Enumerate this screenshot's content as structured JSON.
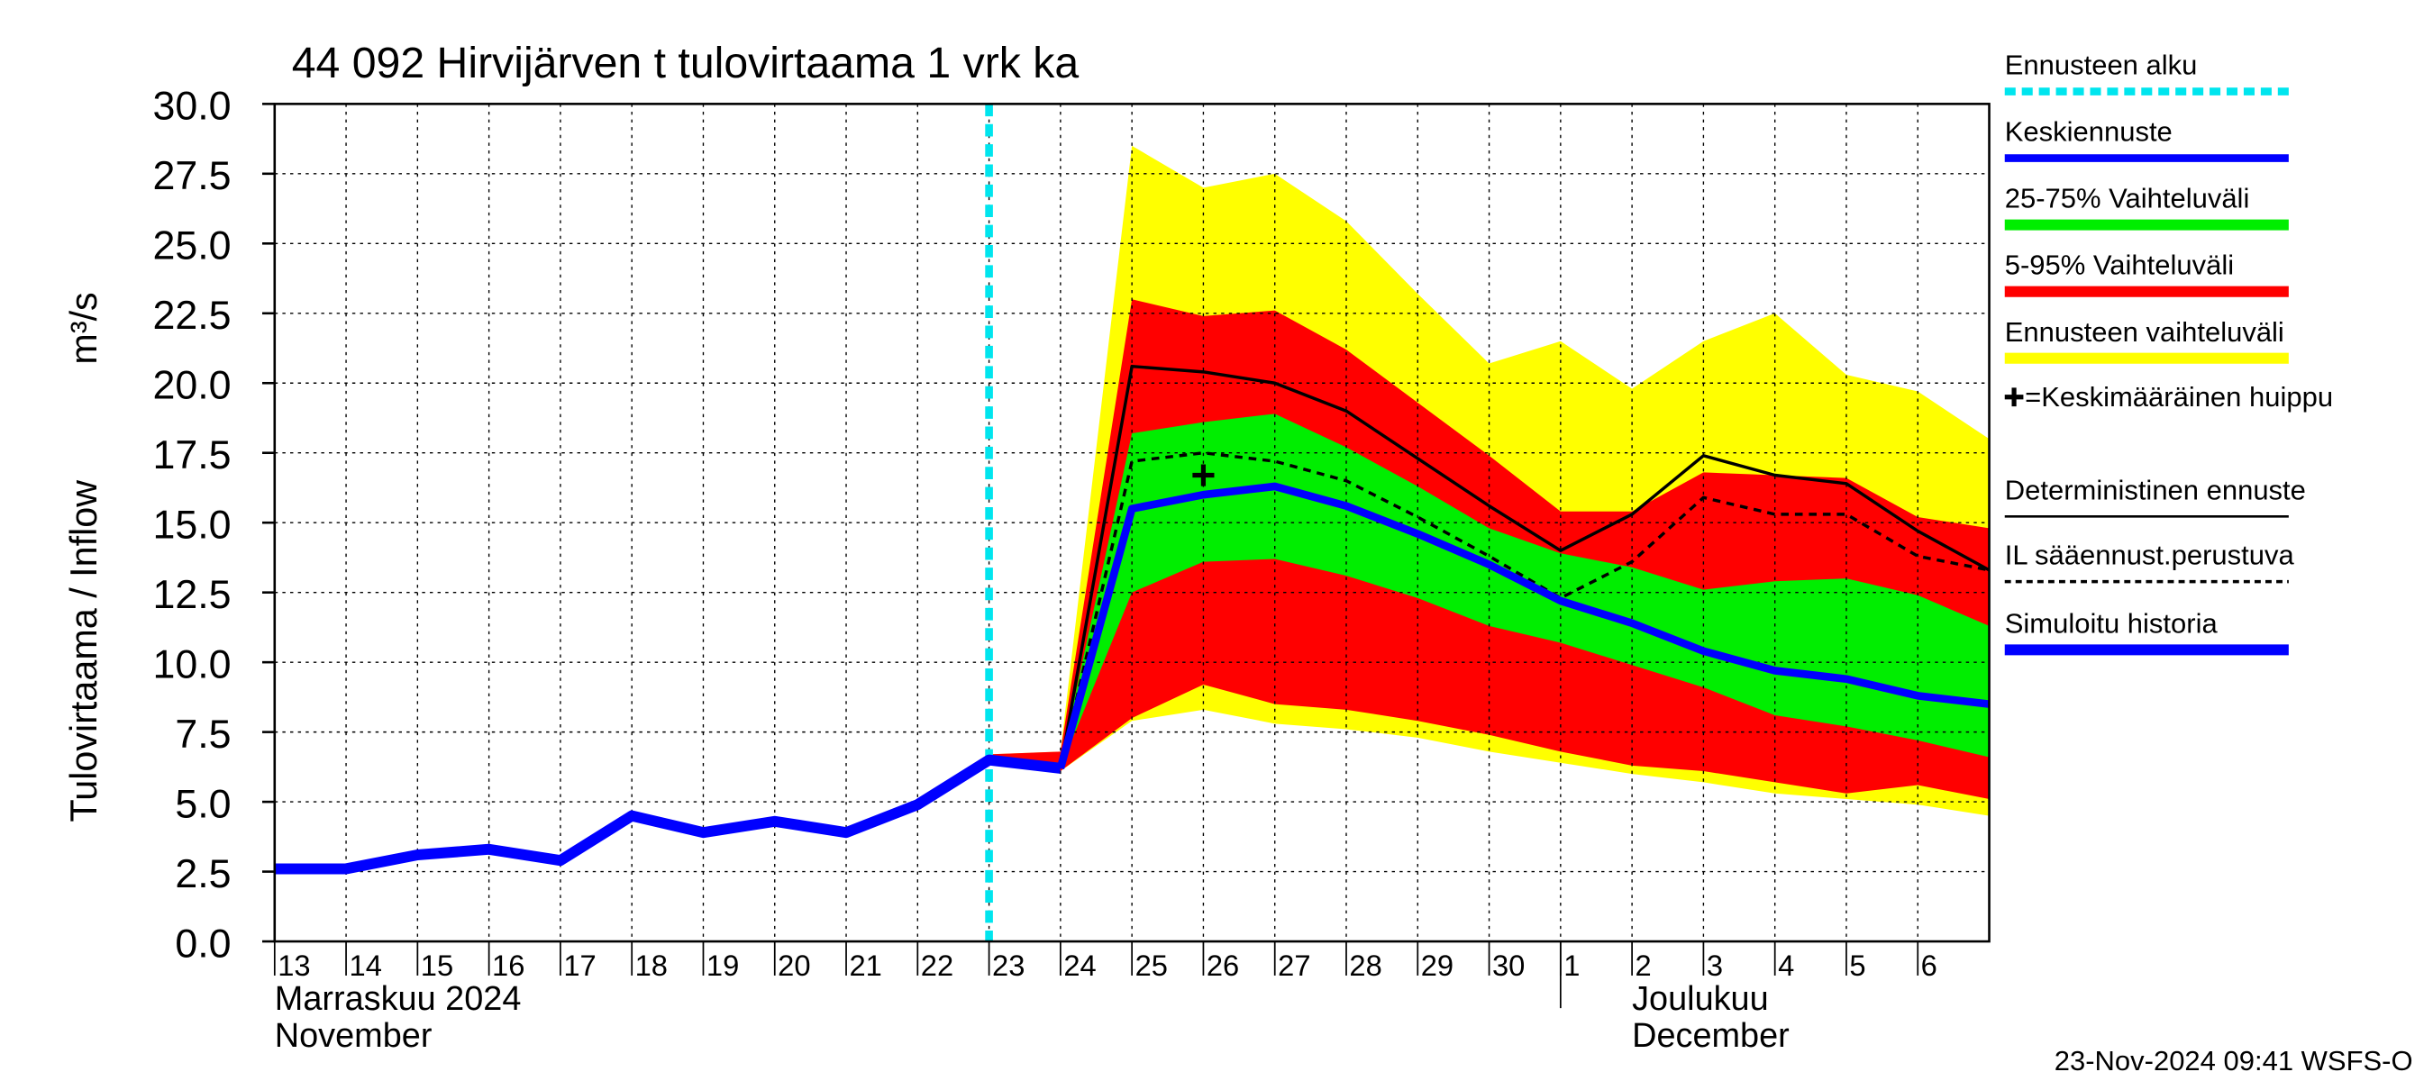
{
  "chart_data": {
    "type": "line",
    "title": "44 092 Hirvijärven t tulovirtaama 1 vrk ka",
    "ylabel": "Tulovirtaama / Inflow",
    "yunit": "m³/s",
    "month_labels": [
      {
        "x": "2024-11-13",
        "lines": [
          "Marraskuu 2024",
          "November"
        ]
      },
      {
        "x": "2024-12-02",
        "lines": [
          "Joulukuu",
          "December"
        ]
      }
    ],
    "timestamp": "23-Nov-2024 09:41 WSFS-O",
    "x": [
      "2024-11-13",
      "2024-11-14",
      "2024-11-15",
      "2024-11-16",
      "2024-11-17",
      "2024-11-18",
      "2024-11-19",
      "2024-11-20",
      "2024-11-21",
      "2024-11-22",
      "2024-11-23",
      "2024-11-24",
      "2024-11-25",
      "2024-11-26",
      "2024-11-27",
      "2024-11-28",
      "2024-11-29",
      "2024-11-30",
      "2024-12-01",
      "2024-12-02",
      "2024-12-03",
      "2024-12-04",
      "2024-12-05",
      "2024-12-06",
      "2024-12-07"
    ],
    "xlim": [
      "2024-11-13",
      "2024-12-07"
    ],
    "xticks": [
      {
        "value": "2024-11-13",
        "label": "13"
      },
      {
        "value": "2024-11-14",
        "label": "14"
      },
      {
        "value": "2024-11-15",
        "label": "15"
      },
      {
        "value": "2024-11-16",
        "label": "16"
      },
      {
        "value": "2024-11-17",
        "label": "17"
      },
      {
        "value": "2024-11-18",
        "label": "18"
      },
      {
        "value": "2024-11-19",
        "label": "19"
      },
      {
        "value": "2024-11-20",
        "label": "20"
      },
      {
        "value": "2024-11-21",
        "label": "21"
      },
      {
        "value": "2024-11-22",
        "label": "22"
      },
      {
        "value": "2024-11-23",
        "label": "23"
      },
      {
        "value": "2024-11-24",
        "label": "24"
      },
      {
        "value": "2024-11-25",
        "label": "25"
      },
      {
        "value": "2024-11-26",
        "label": "26"
      },
      {
        "value": "2024-11-27",
        "label": "27"
      },
      {
        "value": "2024-11-28",
        "label": "28"
      },
      {
        "value": "2024-11-29",
        "label": "29"
      },
      {
        "value": "2024-11-30",
        "label": "30"
      },
      {
        "value": "2024-12-01",
        "label": "1"
      },
      {
        "value": "2024-12-02",
        "label": "2"
      },
      {
        "value": "2024-12-03",
        "label": "3"
      },
      {
        "value": "2024-12-04",
        "label": "4"
      },
      {
        "value": "2024-12-05",
        "label": "5"
      },
      {
        "value": "2024-12-06",
        "label": "6"
      }
    ],
    "month_divider": "2024-12-01",
    "ylim": [
      0,
      30
    ],
    "yticks": [
      {
        "value": 0,
        "label": "0.0"
      },
      {
        "value": 2.5,
        "label": "2.5"
      },
      {
        "value": 5,
        "label": "5.0"
      },
      {
        "value": 7.5,
        "label": "7.5"
      },
      {
        "value": 10,
        "label": "10.0"
      },
      {
        "value": 12.5,
        "label": "12.5"
      },
      {
        "value": 15,
        "label": "15.0"
      },
      {
        "value": 17.5,
        "label": "17.5"
      },
      {
        "value": 20,
        "label": "20.0"
      },
      {
        "value": 22.5,
        "label": "22.5"
      },
      {
        "value": 25,
        "label": "25.0"
      },
      {
        "value": 27.5,
        "label": "27.5"
      },
      {
        "value": 30,
        "label": "30.0"
      }
    ],
    "grid": true,
    "forecast_start": {
      "name": "Ennusteen alku",
      "x": "2024-11-23",
      "color": "#00e5ee"
    },
    "bands": [
      {
        "name": "Ennusteen vaihteluväli",
        "color": "#ffff00",
        "high": [
          null,
          null,
          null,
          null,
          null,
          null,
          null,
          null,
          null,
          null,
          6.7,
          6.8,
          28.5,
          27.0,
          27.5,
          25.8,
          23.2,
          20.7,
          21.5,
          19.8,
          21.5,
          22.5,
          20.3,
          19.7,
          18.0
        ],
        "low": [
          null,
          null,
          null,
          null,
          null,
          null,
          null,
          null,
          null,
          null,
          6.5,
          6.1,
          7.9,
          8.3,
          7.8,
          7.6,
          7.3,
          6.8,
          6.4,
          6.0,
          5.7,
          5.3,
          5.1,
          4.9,
          4.5
        ]
      },
      {
        "name": "5-95% Vaihteluväli",
        "color": "#ff0000",
        "high": [
          null,
          null,
          null,
          null,
          null,
          null,
          null,
          null,
          null,
          null,
          6.7,
          6.8,
          23.0,
          22.4,
          22.6,
          21.2,
          19.3,
          17.4,
          15.4,
          15.4,
          16.8,
          16.7,
          16.6,
          15.2,
          14.8
        ],
        "low": [
          null,
          null,
          null,
          null,
          null,
          null,
          null,
          null,
          null,
          null,
          6.5,
          6.1,
          8.0,
          9.2,
          8.5,
          8.3,
          7.9,
          7.4,
          6.8,
          6.3,
          6.1,
          5.7,
          5.3,
          5.6,
          5.1
        ]
      },
      {
        "name": "25-75% Vaihteluväli",
        "color": "#00ee00",
        "high": [
          null,
          null,
          null,
          null,
          null,
          null,
          null,
          null,
          null,
          null,
          6.6,
          6.4,
          18.2,
          18.6,
          18.9,
          17.7,
          16.3,
          14.8,
          13.9,
          13.4,
          12.6,
          12.9,
          13.0,
          12.4,
          11.3
        ],
        "low": [
          null,
          null,
          null,
          null,
          null,
          null,
          null,
          null,
          null,
          null,
          6.5,
          6.2,
          12.5,
          13.6,
          13.7,
          13.1,
          12.3,
          11.3,
          10.7,
          9.9,
          9.1,
          8.1,
          7.7,
          7.2,
          6.6
        ]
      }
    ],
    "series": [
      {
        "name": "IL sääennust.perustuva",
        "color": "#000000",
        "dash": true,
        "width": 2,
        "values": [
          null,
          null,
          null,
          null,
          null,
          null,
          null,
          null,
          null,
          null,
          null,
          6.2,
          17.2,
          17.5,
          17.2,
          16.5,
          15.2,
          13.8,
          12.3,
          13.6,
          15.9,
          15.3,
          15.3,
          13.8,
          13.3
        ]
      },
      {
        "name": "Deterministinen ennuste",
        "color": "#000000",
        "dash": false,
        "width": 2,
        "values": [
          null,
          null,
          null,
          null,
          null,
          null,
          null,
          null,
          null,
          null,
          null,
          6.2,
          20.6,
          20.4,
          20.0,
          19.0,
          17.3,
          15.6,
          14.0,
          15.3,
          17.4,
          16.7,
          16.4,
          14.7,
          13.3
        ]
      },
      {
        "name": "Keskiennuste",
        "color": "#0000ff",
        "dash": false,
        "width": 5,
        "values": [
          null,
          null,
          null,
          null,
          null,
          null,
          null,
          null,
          null,
          null,
          null,
          6.2,
          15.5,
          16.0,
          16.3,
          15.6,
          14.6,
          13.5,
          12.2,
          11.4,
          10.4,
          9.7,
          9.4,
          8.8,
          8.5
        ]
      },
      {
        "name": "Simuloitu historia",
        "color": "#0000ff",
        "dash": false,
        "width": 7,
        "values": [
          2.6,
          2.6,
          3.1,
          3.3,
          2.9,
          4.5,
          3.9,
          4.3,
          3.9,
          4.9,
          6.5,
          6.2,
          null,
          null,
          null,
          null,
          null,
          null,
          null,
          null,
          null,
          null,
          null,
          null,
          null
        ]
      }
    ],
    "peak": {
      "name": "=Keskimääräinen huippu",
      "x": "2024-11-26",
      "y": 16.7,
      "color": "#000000"
    }
  }
}
